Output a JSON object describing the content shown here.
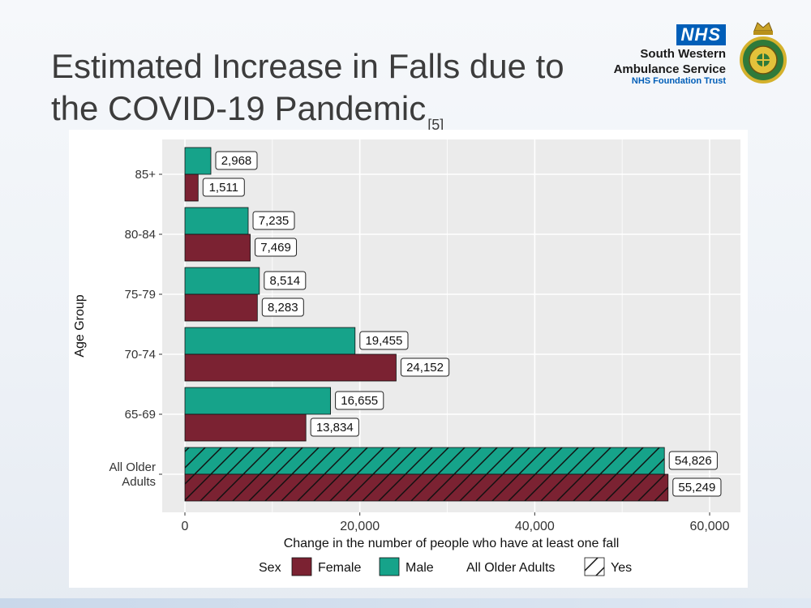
{
  "slide": {
    "title": "Estimated Increase in Falls due to the COVID-19 Pandemic",
    "title_ref": "[5]"
  },
  "org": {
    "nhs_logo": "NHS",
    "name_line1": "South Western",
    "name_line2": "Ambulance Service",
    "subtitle": "NHS Foundation Trust"
  },
  "colors": {
    "female": "#7b2232",
    "male": "#16a38a",
    "panel_bg": "#ebebeb",
    "grid": "#ffffff",
    "nhs_blue": "#005eb8"
  },
  "chart_data": {
    "type": "bar",
    "orientation": "horizontal",
    "xlabel": "Change in the number of people who have at least one fall",
    "ylabel": "Age Group",
    "xlim": [
      0,
      60000
    ],
    "xticks": [
      0,
      20000,
      40000,
      60000
    ],
    "xtick_labels": [
      "0",
      "20,000",
      "40,000",
      "60,000"
    ],
    "categories": [
      "85+",
      "80-84",
      "75-79",
      "70-74",
      "65-69",
      "All Older Adults"
    ],
    "category_display": [
      [
        "85+"
      ],
      [
        "80-84"
      ],
      [
        "75-79"
      ],
      [
        "70-74"
      ],
      [
        "65-69"
      ],
      [
        "All Older",
        "Adults"
      ]
    ],
    "series": [
      {
        "name": "Male",
        "values": [
          2968,
          7235,
          8514,
          19455,
          16655,
          54826
        ],
        "labels": [
          "2,968",
          "7,235",
          "8,514",
          "19,455",
          "16,655",
          "54,826"
        ]
      },
      {
        "name": "Female",
        "values": [
          1511,
          7469,
          8283,
          24152,
          13834,
          55249
        ],
        "labels": [
          "1,511",
          "7,469",
          "8,283",
          "24,152",
          "13,834",
          "55,249"
        ]
      }
    ],
    "hatched_category": "All Older Adults",
    "grid": true,
    "legend": {
      "placement": "bottom",
      "sex_title": "Sex",
      "female_label": "Female",
      "male_label": "Male",
      "all_title": "All Older Adults",
      "all_label": "Yes"
    }
  }
}
